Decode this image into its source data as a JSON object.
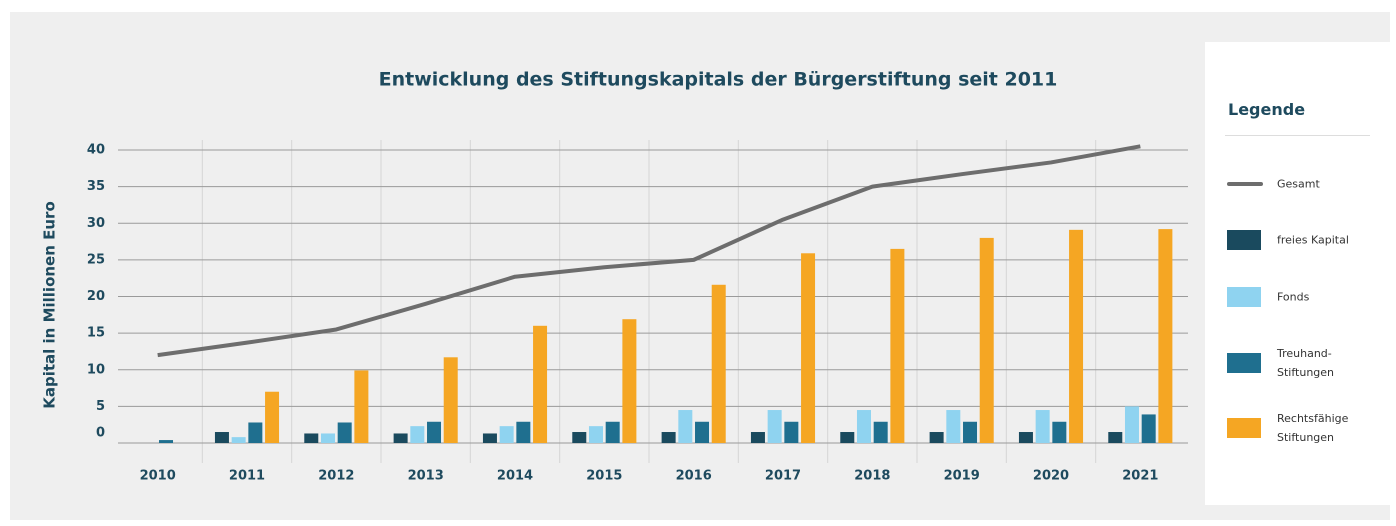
{
  "chart_data": {
    "type": "bar",
    "title": "Entwicklung des Stiftungskapitals der Bürgerstiftung seit 2011",
    "ylabel": "Kapital in Millionen Euro",
    "legend_title": "Legende",
    "categories": [
      "2010",
      "2011",
      "2012",
      "2013",
      "2014",
      "2015",
      "2016",
      "2017",
      "2018",
      "2019",
      "2020",
      "2021"
    ],
    "ylim": [
      0,
      40
    ],
    "yticks": [
      0,
      5,
      10,
      15,
      20,
      25,
      30,
      35,
      40
    ],
    "grid": true,
    "legend": "right",
    "series": [
      {
        "name": "Gesamt",
        "type": "line",
        "color": "#6d6d6d",
        "values": [
          12,
          13.7,
          15.5,
          19,
          22.7,
          24,
          25,
          30.5,
          35,
          36.7,
          38.3,
          40.5
        ]
      },
      {
        "name": "freies Kapital",
        "type": "bar",
        "color": "#1a4a5e",
        "values": [
          0,
          1.5,
          1.3,
          1.3,
          1.3,
          1.5,
          1.5,
          1.5,
          1.5,
          1.5,
          1.5,
          1.5
        ]
      },
      {
        "name": "Fonds",
        "type": "bar",
        "color": "#8fd3f0",
        "values": [
          0,
          0.8,
          1.3,
          2.3,
          2.3,
          2.3,
          4.5,
          4.5,
          4.5,
          4.5,
          4.5,
          5
        ]
      },
      {
        "name": "Treuhand-Stiftungen",
        "type": "bar",
        "color": "#1f6f8f",
        "values": [
          0.4,
          2.8,
          2.8,
          2.9,
          2.9,
          2.9,
          2.9,
          2.9,
          2.9,
          2.9,
          2.9,
          3.9
        ]
      },
      {
        "name": "Rechtsfähige Stiftungen",
        "type": "bar",
        "color": "#f5a623",
        "values": [
          0,
          7,
          9.9,
          11.7,
          16,
          16.9,
          21.6,
          25.9,
          26.5,
          28,
          29.1,
          29.2
        ]
      }
    ]
  }
}
